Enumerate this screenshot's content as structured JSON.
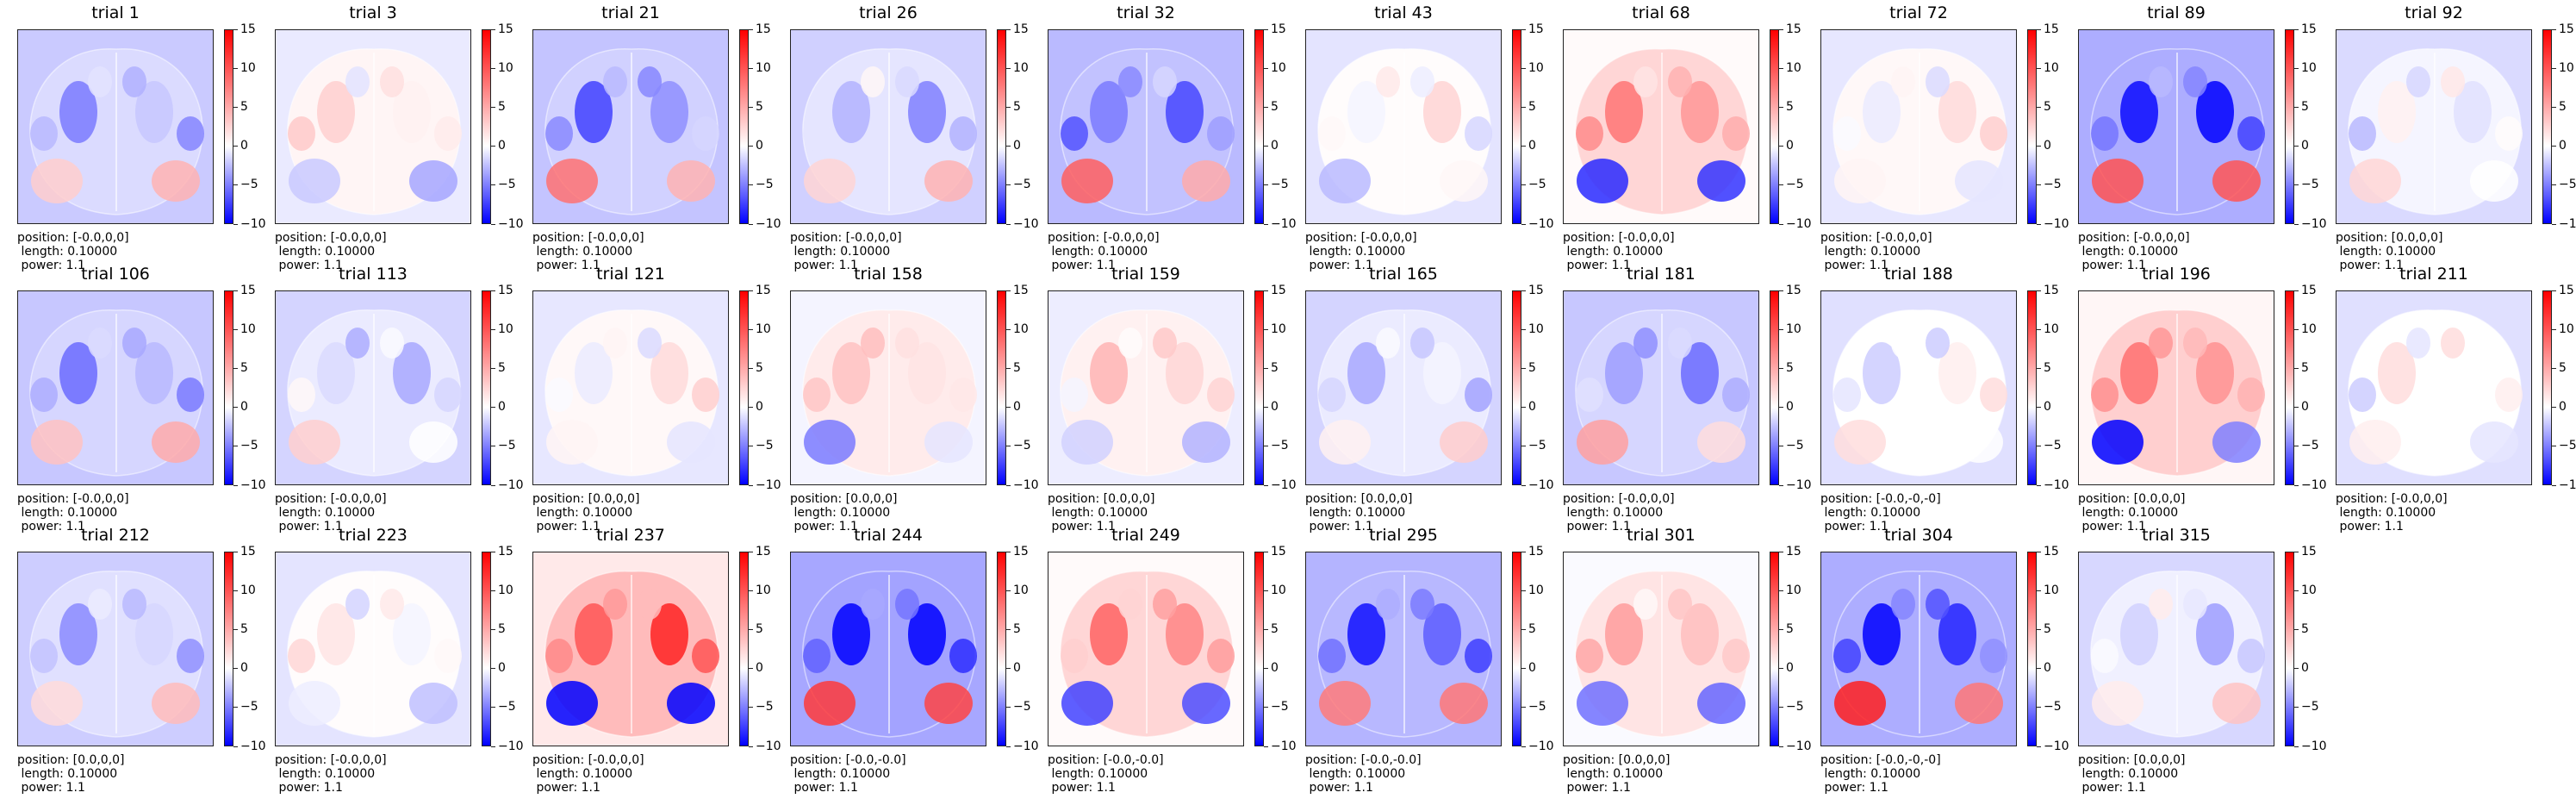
{
  "chart_data": {
    "type": "heatmap",
    "layout": "3 rows x 10 columns of small-multiple heatmaps, each with its own vertical colorbar",
    "colormap": "bwr",
    "colorbar": {
      "range": [
        -10,
        15
      ],
      "ticks": [
        -10,
        -5,
        0,
        5,
        10,
        15
      ],
      "tick_labels": [
        "−10",
        "−5",
        "0",
        "5",
        "10",
        "15"
      ]
    },
    "panels": [
      {
        "title": "trial 1",
        "position": "position: [-0.0,0,0]",
        "length": " length: 0.10000",
        "power": " power: 1.1",
        "mean_level": -3.5
      },
      {
        "title": "trial 3",
        "position": "position: [-0.0,0,0]",
        "length": " length: 0.10000",
        "power": " power: 1.1",
        "mean_level": 1.5
      },
      {
        "title": "trial 21",
        "position": "position: [-0.0,0,0]",
        "length": " length: 0.10000",
        "power": " power: 1.1",
        "mean_level": -4.5
      },
      {
        "title": "trial 26",
        "position": "position: [-0.0,0,0]",
        "length": " length: 0.10000",
        "power": " power: 1.1",
        "mean_level": -2.5
      },
      {
        "title": "trial 32",
        "position": "position: [-0.0,0,0]",
        "length": " length: 0.10000",
        "power": " power: 1.1",
        "mean_level": -6.0
      },
      {
        "title": "trial 43",
        "position": "position: [-0.0,0,0]",
        "length": " length: 0.10000",
        "power": " power: 1.1",
        "mean_level": 0.5
      },
      {
        "title": "trial 68",
        "position": "position: [-0.0,0,0]",
        "length": " length: 0.10000",
        "power": " power: 1.1",
        "mean_level": 6.0
      },
      {
        "title": "trial 72",
        "position": "position: [-0.0,0,0]",
        "length": " length: 0.10000",
        "power": " power: 1.1",
        "mean_level": 1.0
      },
      {
        "title": "trial 89",
        "position": "position: [-0.0,0,0]",
        "length": " length: 0.10000",
        "power": " power: 1.1",
        "mean_level": -8.0
      },
      {
        "title": "trial 92",
        "position": "position: [0.0,0,0]",
        "length": " length: 0.10000",
        "power": " power: 1.1",
        "mean_level": -1.0
      },
      {
        "title": "trial 106",
        "position": "position: [-0.0,0,0]",
        "length": " length: 0.10000",
        "power": " power: 1.1",
        "mean_level": -4.0
      },
      {
        "title": "trial 113",
        "position": "position: [-0.0,0,0]",
        "length": " length: 0.10000",
        "power": " power: 1.1",
        "mean_level": -2.0
      },
      {
        "title": "trial 121",
        "position": "position: [0.0,0,0]",
        "length": " length: 0.10000",
        "power": " power: 1.1",
        "mean_level": 1.0
      },
      {
        "title": "trial 158",
        "position": "position: [0.0,0,0]",
        "length": " length: 0.10000",
        "power": " power: 1.1",
        "mean_level": 3.0
      },
      {
        "title": "trial 159",
        "position": "position: [0.0,0,0]",
        "length": " length: 0.10000",
        "power": " power: 1.1",
        "mean_level": 2.0
      },
      {
        "title": "trial 165",
        "position": "position: [0.0,0,0]",
        "length": " length: 0.10000",
        "power": " power: 1.1",
        "mean_level": -2.0
      },
      {
        "title": "trial 181",
        "position": "position: [-0.0,0,0]",
        "length": " length: 0.10000",
        "power": " power: 1.1",
        "mean_level": -4.0
      },
      {
        "title": "trial 188",
        "position": "position: [-0.0,-0,-0]",
        "length": " length: 0.10000",
        "power": " power: 1.1",
        "mean_level": 0.0
      },
      {
        "title": "trial 196",
        "position": "position: [0.0,0,0]",
        "length": " length: 0.10000",
        "power": " power: 1.1",
        "mean_level": 7.0
      },
      {
        "title": "trial 211",
        "position": "position: [-0.0,0,0]",
        "length": " length: 0.10000",
        "power": " power: 1.1",
        "mean_level": 0.0
      },
      {
        "title": "trial 212",
        "position": "position: [0.0,0,0]",
        "length": " length: 0.10000",
        "power": " power: 1.1",
        "mean_level": -3.0
      },
      {
        "title": "trial 223",
        "position": "position: [-0.0,0,0]",
        "length": " length: 0.10000",
        "power": " power: 1.1",
        "mean_level": 0.5
      },
      {
        "title": "trial 237",
        "position": "position: [-0.0,0,0]",
        "length": " length: 0.10000",
        "power": " power: 1.1",
        "mean_level": 10.0
      },
      {
        "title": "trial 244",
        "position": "position: [-0.0,-0.0]",
        "length": " length: 0.10000",
        "power": " power: 1.1",
        "mean_level": -9.0
      },
      {
        "title": "trial 249",
        "position": "position: [-0.0,-0.0]",
        "length": " length: 0.10000",
        "power": " power: 1.1",
        "mean_level": 6.0
      },
      {
        "title": "trial 295",
        "position": "position: [-0.0,-0.0]",
        "length": " length: 0.10000",
        "power": " power: 1.1",
        "mean_level": -7.0
      },
      {
        "title": "trial 301",
        "position": "position: [0.0,0,0]",
        "length": " length: 0.10000",
        "power": " power: 1.1",
        "mean_level": 4.0
      },
      {
        "title": "trial 304",
        "position": "position: [-0.0,-0,-0]",
        "length": " length: 0.10000",
        "power": " power: 1.1",
        "mean_level": -8.0
      },
      {
        "title": "trial 315",
        "position": "position: [0.0,0,0]",
        "length": " length: 0.10000",
        "power": " power: 1.1",
        "mean_level": -1.5
      }
    ]
  }
}
